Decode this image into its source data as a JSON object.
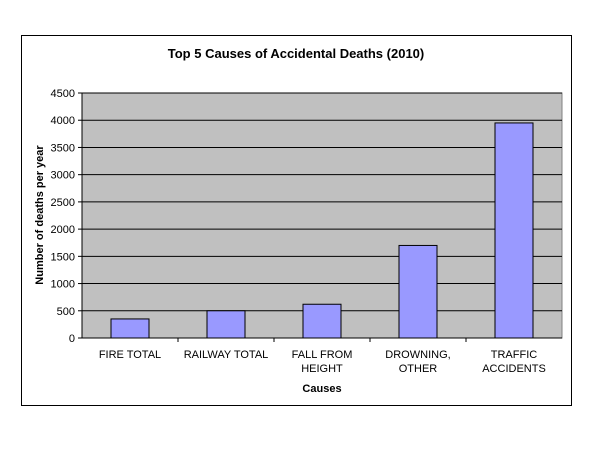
{
  "chart_data": {
    "type": "bar",
    "title": "Top 5 Causes of Accidental Deaths (2010)",
    "xlabel": "Causes",
    "ylabel": "Number of deaths per year",
    "categories": [
      [
        "FIRE TOTAL"
      ],
      [
        "RAILWAY TOTAL"
      ],
      [
        "FALL FROM",
        "HEIGHT"
      ],
      [
        "DROWNING,",
        "OTHER"
      ],
      [
        "TRAFFIC",
        "ACCIDENTS"
      ]
    ],
    "values": [
      350,
      500,
      620,
      1700,
      3950
    ],
    "ylim": [
      0,
      4500
    ],
    "yticks": [
      "0",
      "500",
      "1000",
      "1500",
      "2000",
      "2500",
      "3000",
      "3500",
      "4000",
      "4500"
    ],
    "grid": true,
    "legend": "none",
    "colors": {
      "bar_fill": "#9999ff",
      "bar_stroke": "#000000",
      "plot_bg": "#c0c0c0",
      "grid": "#000000"
    }
  }
}
